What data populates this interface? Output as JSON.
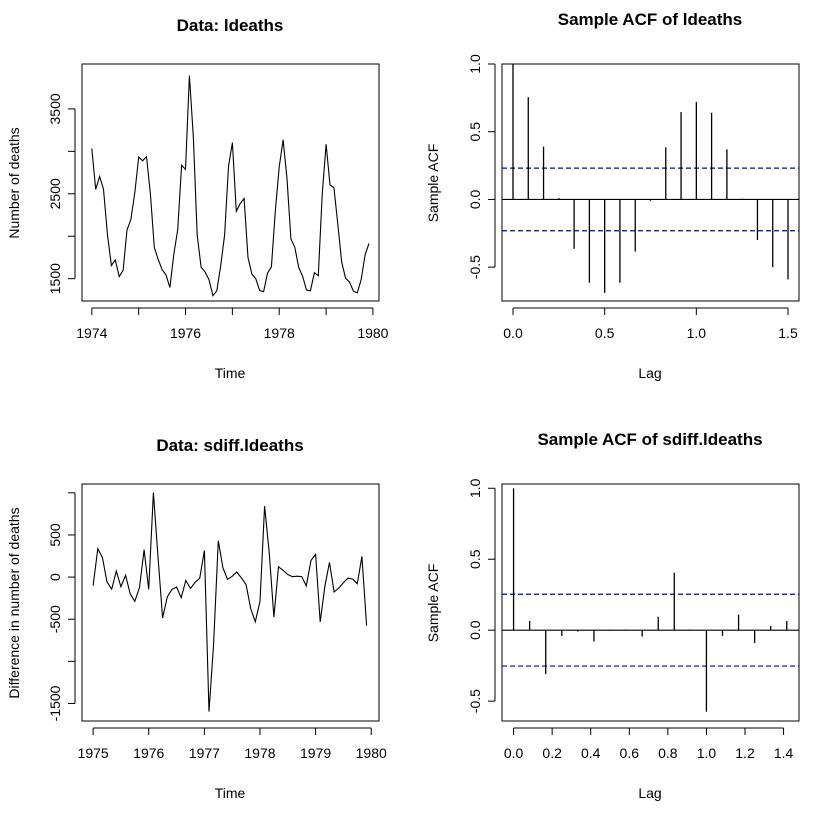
{
  "chart_data": [
    {
      "id": "ldeaths-series",
      "type": "line",
      "title": "Data: ldeaths",
      "xlabel": "Time",
      "ylabel": "Number of deaths",
      "xlim": [
        1973.79,
        1980.13
      ],
      "ylim": [
        1237,
        4029
      ],
      "x_ticks": [
        1974,
        1975,
        1976,
        1977,
        1978,
        1979,
        1980
      ],
      "x_tick_labels": [
        "1974",
        "",
        "1976",
        "",
        "1978",
        "",
        "1980"
      ],
      "y_ticks": [
        1500,
        2000,
        2500,
        3000,
        3500
      ],
      "y_tick_labels": [
        "1500",
        "",
        "2500",
        "",
        "3500"
      ],
      "start": 1974,
      "frequency": 12,
      "values": [
        3035,
        2552,
        2704,
        2554,
        2014,
        1655,
        1721,
        1524,
        1596,
        2074,
        2199,
        2512,
        2933,
        2889,
        2938,
        2497,
        1870,
        1726,
        1607,
        1545,
        1396,
        1787,
        2076,
        2837,
        2787,
        3891,
        3179,
        2011,
        1636,
        1580,
        1489,
        1300,
        1356,
        1653,
        2013,
        2823,
        3102,
        2294,
        2385,
        2444,
        1748,
        1554,
        1498,
        1361,
        1346,
        1564,
        1640,
        2293,
        2815,
        3137,
        2679,
        1969,
        1870,
        1633,
        1529,
        1366,
        1357,
        1570,
        1535,
        2491,
        3084,
        2605,
        2573,
        2143,
        1693,
        1504,
        1461,
        1354,
        1333,
        1492,
        1781,
        1915
      ]
    },
    {
      "id": "ldeaths-acf",
      "type": "bar",
      "title": "Sample ACF of ldeaths",
      "xlabel": "Lag",
      "ylabel": "Sample ACF",
      "xlim": [
        -0.06,
        1.56
      ],
      "ylim": [
        -0.75,
        1.0
      ],
      "x_ticks": [
        0.0,
        0.5,
        1.0,
        1.5
      ],
      "x_tick_labels": [
        "0.0",
        "0.5",
        "1.0",
        "1.5"
      ],
      "y_ticks": [
        -0.5,
        0.0,
        0.5,
        1.0
      ],
      "y_tick_labels": [
        "-0.5",
        "0.0",
        "0.5",
        "1.0"
      ],
      "lags": [
        0,
        0.0833,
        0.1667,
        0.25,
        0.3333,
        0.4167,
        0.5,
        0.5833,
        0.6667,
        0.75,
        0.8333,
        0.9167,
        1.0,
        1.0833,
        1.1667,
        1.25,
        1.3333,
        1.4167,
        1.5
      ],
      "values": [
        1.0,
        0.755,
        0.39,
        0.01,
        -0.365,
        -0.615,
        -0.69,
        -0.615,
        -0.385,
        -0.01,
        0.385,
        0.645,
        0.72,
        0.64,
        0.37,
        0.005,
        -0.3,
        -0.5,
        -0.59
      ],
      "ci": 0.231,
      "ci_color": "#0000cc"
    },
    {
      "id": "sdiff-series",
      "type": "line",
      "title": "Data: sdiff.ldeaths",
      "xlabel": "Time",
      "ylabel": "Difference in number of deaths",
      "xlim": [
        1974.8,
        1980.14
      ],
      "ylim": [
        -1708,
        1105
      ],
      "x_ticks": [
        1975,
        1976,
        1977,
        1978,
        1979,
        1980
      ],
      "x_tick_labels": [
        "1975",
        "1976",
        "1977",
        "1978",
        "1979",
        "1980"
      ],
      "y_ticks": [
        -1500,
        -1000,
        -500,
        0,
        500,
        1000
      ],
      "y_tick_labels": [
        "-1500",
        "",
        "-500",
        "0",
        "500",
        ""
      ],
      "start": 1975,
      "frequency": 12,
      "values": [
        -102,
        337,
        234,
        -57,
        -144,
        71,
        -114,
        21,
        -200,
        -287,
        -123,
        325,
        -146,
        1002,
        241,
        -486,
        -234,
        -146,
        -118,
        -245,
        -40,
        -134,
        -63,
        -14,
        315,
        -1597,
        -794,
        433,
        112,
        -26,
        9,
        61,
        -10,
        -89,
        -373,
        -530,
        -287,
        843,
        294,
        -475,
        122,
        79,
        31,
        5,
        11,
        6,
        -105,
        198,
        269,
        -532,
        -106,
        174,
        -177,
        -129,
        -68,
        -12,
        -24,
        -78,
        246,
        -576
      ]
    },
    {
      "id": "sdiff-acf",
      "type": "bar",
      "title": "Sample ACF of sdiff.ldeaths",
      "xlabel": "Lag",
      "ylabel": "Sample ACF",
      "xlim": [
        -0.06,
        1.48
      ],
      "ylim": [
        -0.64,
        1.03
      ],
      "x_ticks": [
        0.0,
        0.2,
        0.4,
        0.6,
        0.8,
        1.0,
        1.2,
        1.4
      ],
      "x_tick_labels": [
        "0.0",
        "0.2",
        "0.4",
        "0.6",
        "0.8",
        "1.0",
        "1.2",
        "1.4"
      ],
      "y_ticks": [
        -0.5,
        0.0,
        0.5,
        1.0
      ],
      "y_tick_labels": [
        "-0.5",
        "0.0",
        "0.5",
        "1.0"
      ],
      "lags": [
        0,
        0.0833,
        0.1667,
        0.25,
        0.3333,
        0.4167,
        0.5,
        0.5833,
        0.6667,
        0.75,
        0.8333,
        0.9167,
        1.0,
        1.0833,
        1.1667,
        1.25,
        1.3333,
        1.4167
      ],
      "values": [
        1.0,
        0.065,
        -0.31,
        -0.04,
        -0.01,
        -0.08,
        -0.005,
        0.005,
        -0.045,
        0.095,
        0.405,
        0.005,
        -0.575,
        -0.04,
        0.11,
        -0.09,
        0.03,
        0.065
      ],
      "ci": 0.253,
      "ci_color": "#0000cc"
    }
  ]
}
